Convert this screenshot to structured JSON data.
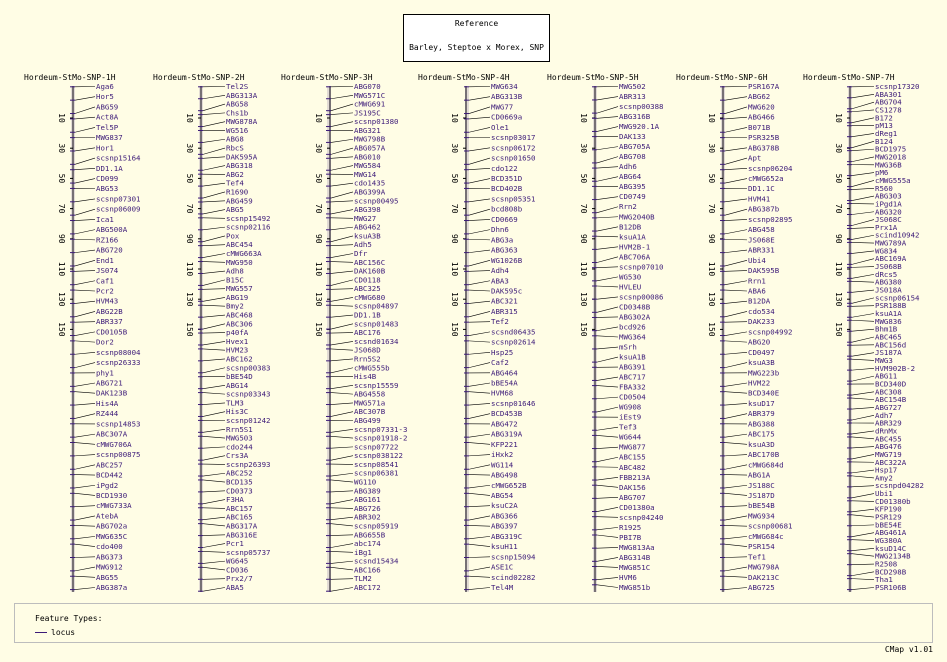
{
  "reference": {
    "label": "Reference",
    "map_set": "Barley, Steptoe x Morex, SNP"
  },
  "legend": {
    "title": "Feature Types:",
    "items": [
      {
        "label": "locus",
        "color": "#3c1a78"
      }
    ]
  },
  "footer": "CMap v1.01",
  "colors": {
    "background": "#fffde5",
    "feature": "#3c1a78",
    "scale": "#000000"
  },
  "maps": [
    {
      "name": "Hordeum-StMo-SNP-1H",
      "ticks": [
        "10",
        "30",
        "50",
        "70",
        "90",
        "110",
        "130",
        "150"
      ],
      "loci": [
        "Aga6",
        "Hor5",
        "ABG59",
        "Act8A",
        "Tel5P",
        "MWG837",
        "Hor1",
        "scsnp15164",
        "DD1.1A",
        "CD099",
        "ABG53",
        "scsnp07301",
        "scsnp06009",
        "Ica1",
        "ABG500A",
        "RZ166",
        "ABG720",
        "End1",
        "JS074",
        "Caf1",
        "Pcr2",
        "HVM43",
        "ABG22B",
        "ABR337",
        "CD0105B",
        "Dor2",
        "scsnp08004",
        "scsnp26333",
        "phy1",
        "ABG721",
        "DAK123B",
        "His4A",
        "RZ444",
        "scsnp14853",
        "ABC307A",
        "cMWG706A",
        "scsnp00875",
        "ABC257",
        "BCD442",
        "iPgd2",
        "BCD1930",
        "cMWG733A",
        "AtebA",
        "ABG702a",
        "MWG635C",
        "cdo400",
        "ABG373",
        "MWG912",
        "ABG55",
        "ABG387a"
      ]
    },
    {
      "name": "Hordeum-StMo-SNP-2H",
      "ticks": [
        "10",
        "30",
        "50",
        "70",
        "90",
        "110",
        "130",
        "150"
      ],
      "loci": [
        "Tel2S",
        "ABG313A",
        "ABG58",
        "Chs1b",
        "MWG878A",
        "WG516",
        "ABG8",
        "RbcS",
        "DAK595A",
        "ABG318",
        "ABG2",
        "Tef4",
        "R1690",
        "ABG459",
        "ABG5",
        "scsnp15492",
        "scsnp02116",
        "Pox",
        "ABC454",
        "cMWG663A",
        "MWG950",
        "Adh8",
        "B15C",
        "MWG557",
        "ABG19",
        "Bmy2",
        "ABC468",
        "ABC306",
        "p40fA",
        "Hvex1",
        "HVM23",
        "ABC162",
        "scsnp00383",
        "bBE54D",
        "ABG14",
        "scsnp03343",
        "TLM3",
        "His3C",
        "scsnp01242",
        "Rrn5S1",
        "MWG503",
        "cdo244",
        "Crs3A",
        "scsnp26393",
        "ABC252",
        "BCD135",
        "CD0373",
        "F3HA",
        "ABC157",
        "ABC165",
        "ABG317A",
        "ABG316E",
        "Pcr1",
        "scsnp05737",
        "WG645",
        "CD036",
        "Prx2/7",
        "ABA5"
      ]
    },
    {
      "name": "Hordeum-StMo-SNP-3H",
      "ticks": [
        "10",
        "30",
        "50",
        "70",
        "90",
        "110",
        "130",
        "150"
      ],
      "loci": [
        "ABG070",
        "MWG571C",
        "cMWG691",
        "JS195C",
        "scsnp01380",
        "ABG321",
        "MWG798B",
        "ABG057A",
        "ABG010",
        "MWG584",
        "MWG14",
        "cdo1435",
        "ABG399A",
        "scsnp00495",
        "ABG398",
        "MWG27",
        "ABG462",
        "ksuA3B",
        "Adh5",
        "Dfr",
        "ABC156C",
        "DAK160B",
        "CD0118",
        "ABC325",
        "cMWG680",
        "scsnp04897",
        "DD1.1B",
        "scsnp01483",
        "ABC176",
        "scsnd01634",
        "JS068D",
        "Rrn5S2",
        "cMWG555b",
        "His4B",
        "scsnp15559",
        "ABG4558",
        "MWG571a",
        "ABC307B",
        "ABG499",
        "scsnp07331-3",
        "scsnp01918-2",
        "scsnp07722",
        "scsnp038122",
        "scsnp08541",
        "scsnp06381",
        "WG110",
        "ABG389",
        "ABG161",
        "ABG726",
        "ABR302",
        "scsnp05919",
        "ABG655B",
        "abc174",
        "iBg1",
        "scsnd15434",
        "ABC166",
        "TLM2",
        "ABC172"
      ]
    },
    {
      "name": "Hordeum-StMo-SNP-4H",
      "ticks": [
        "10",
        "30",
        "50",
        "70",
        "90",
        "110",
        "130",
        "150"
      ],
      "loci": [
        "MWG634",
        "ABG313B",
        "MWG77",
        "CD0669a",
        "Ole1",
        "scsnp03017",
        "scsnp06172",
        "scsnp01650",
        "cdo122",
        "BCD351D",
        "BCD402B",
        "scsnp05351",
        "bcd808b",
        "CD0669",
        "Dhn6",
        "ABG3a",
        "ABG363",
        "WG1026B",
        "Adh4",
        "ABA3",
        "DAK595c",
        "ABC321",
        "ABR315",
        "Tef2",
        "scsnd06435",
        "scsnp02614",
        "Hsp25",
        "Caf2",
        "ABG464",
        "bBE54A",
        "HVM68",
        "scsnp01646",
        "BCD453B",
        "ABG472",
        "ABG319A",
        "KFP221",
        "iHxk2",
        "WG114",
        "ABG498",
        "cMWG652B",
        "ABG54",
        "ksuC2A",
        "ABG366",
        "ABG397",
        "ABG319C",
        "ksuH11",
        "scsnp15094",
        "ASE1C",
        "scind02282",
        "Tel4M"
      ]
    },
    {
      "name": "Hordeum-StMo-SNP-5H",
      "ticks": [
        "10",
        "30",
        "50",
        "70",
        "90",
        "110",
        "130",
        "150"
      ],
      "loci": [
        "MWG502",
        "ABR313",
        "scsnp00388",
        "ABG316B",
        "MWG920.1A",
        "DAK133",
        "ABG705A",
        "ABG708",
        "Adh6",
        "ABG64",
        "ABG395",
        "CD0749",
        "Rrn2",
        "MWG2040B",
        "B12DB",
        "ksuA1A",
        "HVM2B-1",
        "ABC706A",
        "scsnp07010",
        "WG530",
        "HVLEU",
        "scsnp00086",
        "CD0348B",
        "ABG302A",
        "bcd926",
        "MWG364",
        "mSrh",
        "ksuA1B",
        "ABG391",
        "ABC717",
        "FBA332",
        "CD0504",
        "WG908",
        "iEst9",
        "Tef3",
        "WG644",
        "MWG877",
        "ABC155",
        "ABC482",
        "FBB213A",
        "DAK156",
        "ABG707",
        "CD01380a",
        "scsnp04240",
        "R1925",
        "PBI7B",
        "MWG813Aa",
        "ABG314B",
        "MWG851C",
        "HVM6",
        "MWG851b"
      ]
    },
    {
      "name": "Hordeum-StMo-SNP-6H",
      "ticks": [
        "10",
        "30",
        "50",
        "70",
        "90",
        "110",
        "130",
        "150"
      ],
      "loci": [
        "PSR167A",
        "ABG62",
        "MWG620",
        "ABG466",
        "B071B",
        "PSR325B",
        "ABG378B",
        "Apt",
        "scsnp06204",
        "cMWG652a",
        "DD1.1C",
        "HVM41",
        "ABG387b",
        "scsnp02895",
        "ABG458",
        "JS068E",
        "ABR331",
        "Ubi4",
        "DAK595B",
        "Rrn1",
        "ABA6",
        "B12DA",
        "cdo534",
        "DAK233",
        "scsnp04992",
        "ABG20",
        "CD0497",
        "ksuA3B",
        "MWG223b",
        "HVM22",
        "BCD340E",
        "ksuD17",
        "ABR379",
        "ABG388",
        "ABC175",
        "ksuA3D",
        "ABC170B",
        "cMWG684d",
        "ABG1A",
        "JS188C",
        "JS187D",
        "bBE54B",
        "MWG934",
        "scsnp00681",
        "cMWG684c",
        "PSR154",
        "Tef1",
        "MWG798A",
        "DAK213C",
        "ABG725"
      ]
    },
    {
      "name": "Hordeum-StMo-SNP-7H",
      "ticks": [
        "10",
        "30",
        "50",
        "70",
        "90",
        "110",
        "130",
        "150"
      ],
      "loci": [
        "scsnp17320",
        "ABA301",
        "ABG704",
        "CS1278",
        "B172",
        "pM13",
        "dReg1",
        "B124",
        "BCD1975",
        "MWG2018",
        "MWG36B",
        "pM6",
        "cMWG555a",
        "R560",
        "ABG303",
        "iPgd1A",
        "ABG320",
        "JS068C",
        "Prx1A",
        "scind10942",
        "MWG789A",
        "WG834",
        "ABC169A",
        "JS068B",
        "dRcs5",
        "ABG380",
        "JS018A",
        "scsnp06154",
        "PSR188B",
        "ksuA1A",
        "MWG836",
        "Bhm1B",
        "ABC465",
        "ABC156d",
        "JS187A",
        "MWG3",
        "HVM902B-2",
        "ABG11",
        "BCD340D",
        "ABC308",
        "ABC154B",
        "ABG727",
        "Adh7",
        "ABR329",
        "dRnMx",
        "ABC455",
        "ABG476",
        "MWG719",
        "ABC322A",
        "Hsp17",
        "Amy2",
        "scsnpd04282",
        "Ubi1",
        "CD01380b",
        "KFP190",
        "PSR129",
        "bBE54E",
        "ABG461A",
        "WG380A",
        "ksuD14C",
        "MWG2134B",
        "R2508",
        "BCD298B",
        "Tha1",
        "PSR106B"
      ]
    }
  ]
}
